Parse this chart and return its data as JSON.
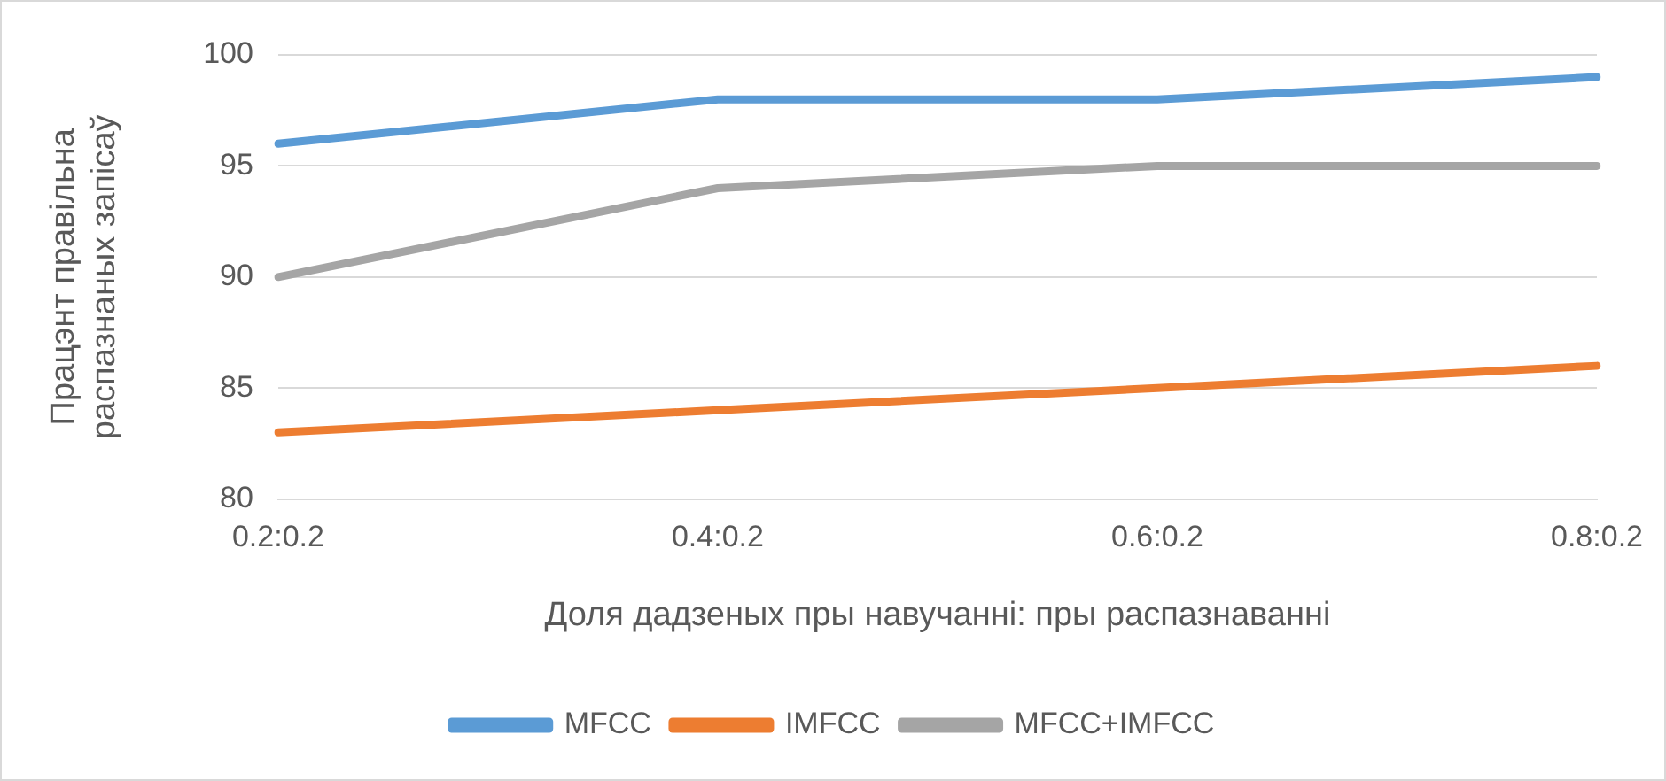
{
  "chart_data": {
    "type": "line",
    "xlabel": "Доля дадзеных пры навучанні: пры распазнаванні",
    "ylabel": "Працэнт правільна\nраспазнаных запісаў",
    "categories": [
      "0.2:0.2",
      "0.4:0.2",
      "0.6:0.2",
      "0.8:0.2"
    ],
    "series": [
      {
        "name": "MFCC",
        "color": "#5b9bd5",
        "values": [
          96,
          98,
          98,
          99
        ]
      },
      {
        "name": "IMFCC",
        "color": "#ed7d31",
        "values": [
          83,
          84,
          85,
          86
        ]
      },
      {
        "name": "MFCC+IMFCC",
        "color": "#a5a5a5",
        "values": [
          90,
          94,
          95,
          95
        ]
      }
    ],
    "ylim": [
      80,
      100
    ],
    "yticks": [
      80,
      85,
      90,
      95,
      100
    ],
    "grid": "y",
    "legend": "bottom",
    "marker": "none",
    "line_style": "solid"
  }
}
